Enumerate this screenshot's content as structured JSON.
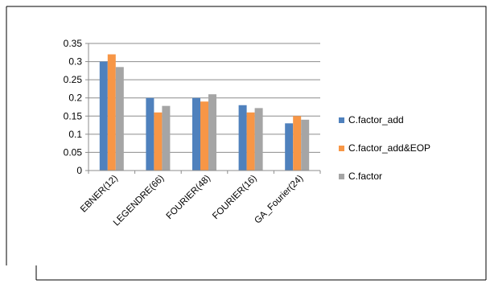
{
  "chart_data": {
    "type": "bar",
    "categories": [
      "EBNER(12)",
      "LEGENDRE(66)",
      "FOURIER(48)",
      "FOURIER(16)",
      "GA_Fourier(24)"
    ],
    "series": [
      {
        "name": "C.factor_add",
        "color": "#4F81BD",
        "values": [
          0.3,
          0.2,
          0.2,
          0.18,
          0.13
        ]
      },
      {
        "name": "C.factor_add&EOP",
        "color": "#F79646",
        "values": [
          0.32,
          0.16,
          0.19,
          0.16,
          0.15
        ]
      },
      {
        "name": "C.factor",
        "color": "#A5A5A5",
        "values": [
          0.285,
          0.178,
          0.21,
          0.172,
          0.14
        ]
      }
    ],
    "ylim": [
      0,
      0.35
    ],
    "yticks": [
      "0",
      "0.05",
      "0.1",
      "0.15",
      "0.2",
      "0.25",
      "0.3",
      "0.35"
    ],
    "grid": true,
    "legend": "right"
  }
}
